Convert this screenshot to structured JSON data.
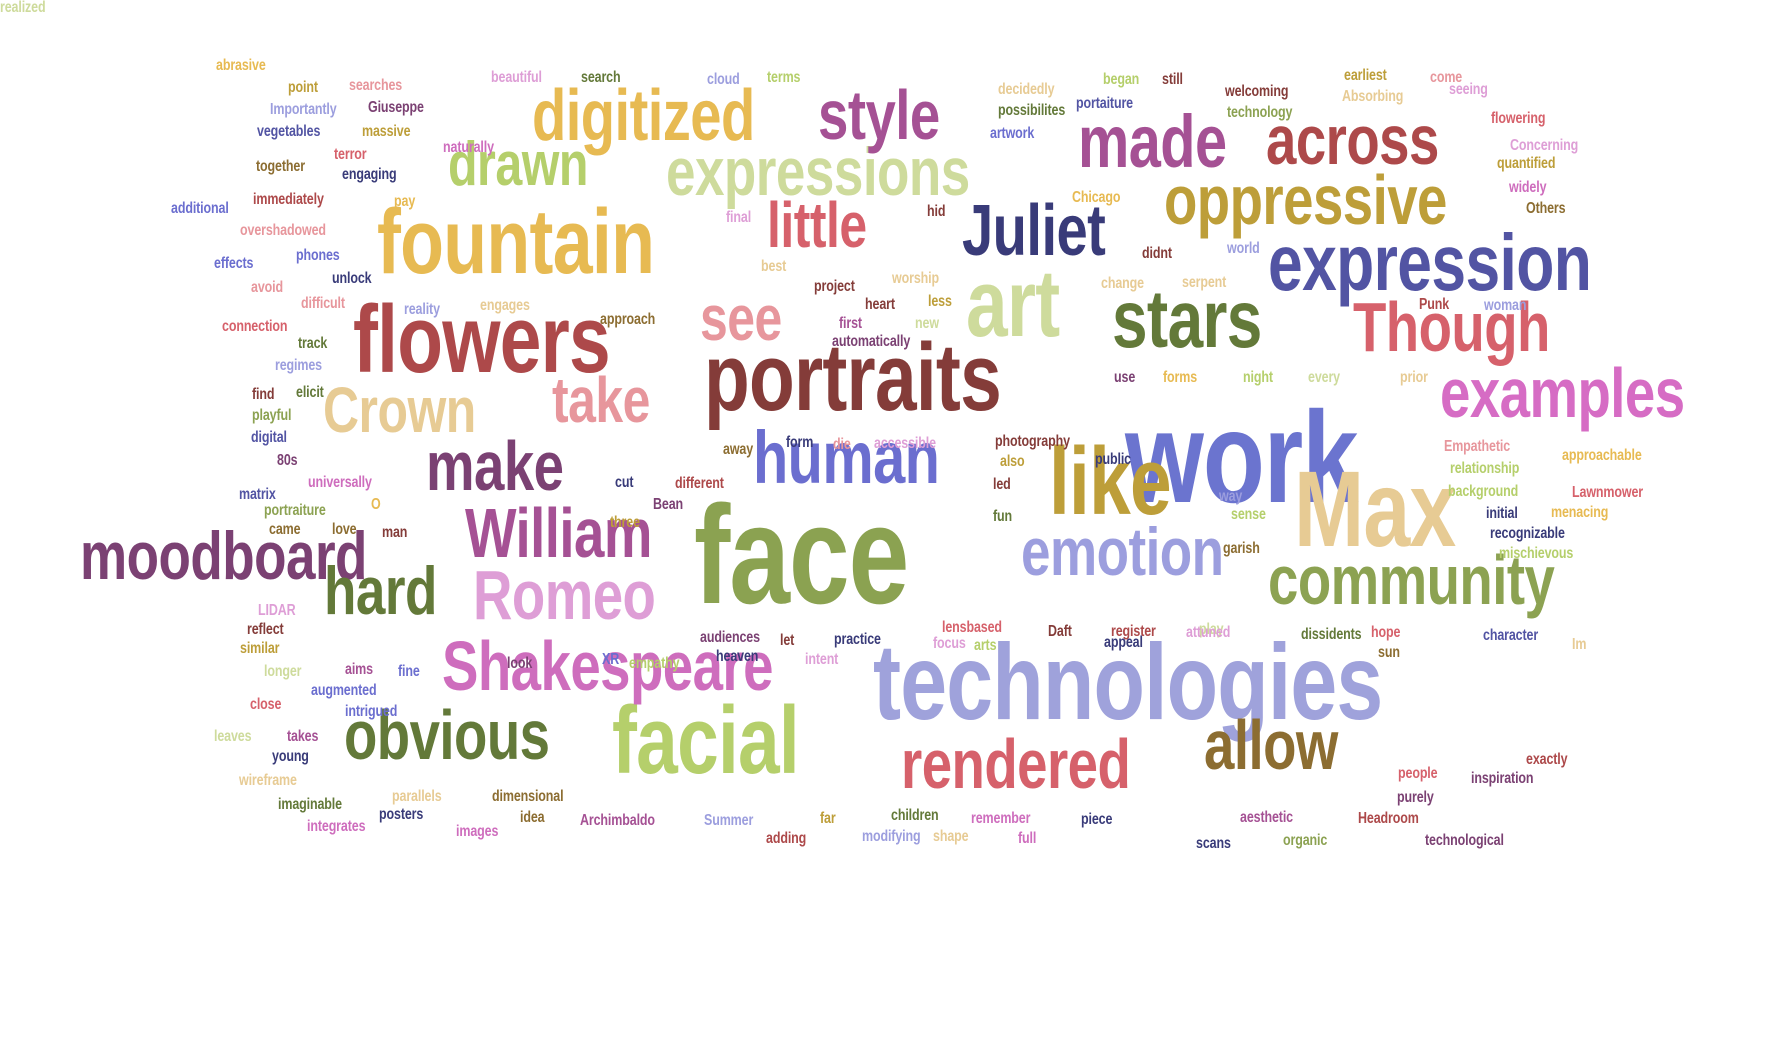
{
  "words": [
    {
      "text": "work",
      "color": "#6b74cf"
    },
    {
      "text": "face",
      "color": "#8ba251"
    },
    {
      "text": "technologies",
      "color": "#9fa2db"
    },
    {
      "text": "portraits",
      "color": "#843c39"
    },
    {
      "text": "flowers",
      "color": "#ad494a"
    },
    {
      "text": "fountain",
      "color": "#e7ba52"
    },
    {
      "text": "art",
      "color": "#cedb9c"
    },
    {
      "text": "stars",
      "color": "#637939"
    },
    {
      "text": "Max",
      "color": "#e7cb94"
    },
    {
      "text": "facial",
      "color": "#b5cf6b"
    },
    {
      "text": "like",
      "color": "#bd9e39"
    },
    {
      "text": "expression",
      "color": "#5254a3"
    },
    {
      "text": "digitized",
      "color": "#e7ba52"
    },
    {
      "text": "expressions",
      "color": "#cedb9c"
    },
    {
      "text": "examples",
      "color": "#d66cc4"
    },
    {
      "text": "moodboard",
      "color": "#7b4173"
    },
    {
      "text": "Shakespeare",
      "color": "#ce6dbd"
    },
    {
      "text": "community",
      "color": "#8ca252"
    },
    {
      "text": "oppressive",
      "color": "#bd9e39"
    },
    {
      "text": "rendered",
      "color": "#d6616b"
    },
    {
      "text": "William",
      "color": "#a55194"
    },
    {
      "text": "human",
      "color": "#6b6ecf"
    },
    {
      "text": "emotion",
      "color": "#9c9ede"
    },
    {
      "text": "obvious",
      "color": "#637939"
    },
    {
      "text": "Though",
      "color": "#d6616b"
    },
    {
      "text": "made",
      "color": "#a55194"
    },
    {
      "text": "across",
      "color": "#ad494a"
    },
    {
      "text": "Juliet",
      "color": "#393b79"
    },
    {
      "text": "style",
      "color": "#a55194"
    },
    {
      "text": "Romeo",
      "color": "#de9ed6"
    },
    {
      "text": "allow",
      "color": "#8c6d31"
    },
    {
      "text": "make",
      "color": "#7b4173"
    },
    {
      "text": "drawn",
      "color": "#b5cf6b"
    },
    {
      "text": "Crown",
      "color": "#e7cb94"
    },
    {
      "text": "take",
      "color": "#e7969c"
    },
    {
      "text": "see",
      "color": "#e7969c"
    },
    {
      "text": "little",
      "color": "#d6616b"
    },
    {
      "text": "hard",
      "color": "#637939"
    },
    {
      "text": "abrasive",
      "color": "#e7ba52"
    },
    {
      "text": "point",
      "color": "#bd9e39"
    },
    {
      "text": "searches",
      "color": "#e7969c"
    },
    {
      "text": "beautiful",
      "color": "#de9ed6"
    },
    {
      "text": "search",
      "color": "#637939"
    },
    {
      "text": "cloud",
      "color": "#9c9ede"
    },
    {
      "text": "terms",
      "color": "#b5cf6b"
    },
    {
      "text": "decidedly",
      "color": "#e7cb94"
    },
    {
      "text": "began",
      "color": "#b5cf6b"
    },
    {
      "text": "still",
      "color": "#843c39"
    },
    {
      "text": "welcoming",
      "color": "#843c39"
    },
    {
      "text": "earliest",
      "color": "#bd9e39"
    },
    {
      "text": "come",
      "color": "#e7969c"
    },
    {
      "text": "Importantly",
      "color": "#9c9ede"
    },
    {
      "text": "Giuseppe",
      "color": "#7b4173"
    },
    {
      "text": "possibilites",
      "color": "#637939"
    },
    {
      "text": "portaiture",
      "color": "#5254a3"
    },
    {
      "text": "technology",
      "color": "#8ca252"
    },
    {
      "text": "Absorbing",
      "color": "#e7cb94"
    },
    {
      "text": "seeing",
      "color": "#de9ed6"
    },
    {
      "text": "flowering",
      "color": "#d6616b"
    },
    {
      "text": "vegetables",
      "color": "#5254a3"
    },
    {
      "text": "massive",
      "color": "#bd9e39"
    },
    {
      "text": "artwork",
      "color": "#6b6ecf"
    },
    {
      "text": "naturally",
      "color": "#ce6dbd"
    },
    {
      "text": "Concerning",
      "color": "#de9ed6"
    },
    {
      "text": "terror",
      "color": "#d6616b"
    },
    {
      "text": "together",
      "color": "#8c6d31"
    },
    {
      "text": "engaging",
      "color": "#393b79"
    },
    {
      "text": "quantified",
      "color": "#bd9e39"
    },
    {
      "text": "widely",
      "color": "#ce6dbd"
    },
    {
      "text": "immediately",
      "color": "#ad494a"
    },
    {
      "text": "pay",
      "color": "#e7ba52"
    },
    {
      "text": "Chicago",
      "color": "#e7ba52"
    },
    {
      "text": "additional",
      "color": "#6b6ecf"
    },
    {
      "text": "overshadowed",
      "color": "#e7969c"
    },
    {
      "text": "final",
      "color": "#de9ed6"
    },
    {
      "text": "hid",
      "color": "#843c39"
    },
    {
      "text": "Others",
      "color": "#8c6d31"
    },
    {
      "text": "effects",
      "color": "#6b6ecf"
    },
    {
      "text": "phones",
      "color": "#6b6ecf"
    },
    {
      "text": "didnt",
      "color": "#843c39"
    },
    {
      "text": "world",
      "color": "#9c9ede"
    },
    {
      "text": "avoid",
      "color": "#e7969c"
    },
    {
      "text": "unlock",
      "color": "#393b79"
    },
    {
      "text": "best",
      "color": "#e7cb94"
    },
    {
      "text": "worship",
      "color": "#e7cb94"
    },
    {
      "text": "change",
      "color": "#e7cb94"
    },
    {
      "text": "serpent",
      "color": "#e7cb94"
    },
    {
      "text": "project",
      "color": "#843c39"
    },
    {
      "text": "difficult",
      "color": "#e7969c"
    },
    {
      "text": "reality",
      "color": "#9c9ede"
    },
    {
      "text": "engages",
      "color": "#e7cb94"
    },
    {
      "text": "heart",
      "color": "#843c39"
    },
    {
      "text": "less",
      "color": "#bd9e39"
    },
    {
      "text": "Punk",
      "color": "#ad494a"
    },
    {
      "text": "woman",
      "color": "#9c9ede"
    },
    {
      "text": "connection",
      "color": "#d6616b"
    },
    {
      "text": "approach",
      "color": "#8c6d31"
    },
    {
      "text": "first",
      "color": "#a55194"
    },
    {
      "text": "new",
      "color": "#cedb9c"
    },
    {
      "text": "track",
      "color": "#637939"
    },
    {
      "text": "automatically",
      "color": "#7b4173"
    },
    {
      "text": "regimes",
      "color": "#9c9ede"
    },
    {
      "text": "use",
      "color": "#7b4173"
    },
    {
      "text": "forms",
      "color": "#e7ba52"
    },
    {
      "text": "night",
      "color": "#b5cf6b"
    },
    {
      "text": "every",
      "color": "#cedb9c"
    },
    {
      "text": "prior",
      "color": "#e7cb94"
    },
    {
      "text": "find",
      "color": "#843c39"
    },
    {
      "text": "elicit",
      "color": "#637939"
    },
    {
      "text": "playful",
      "color": "#8ca252"
    },
    {
      "text": "digital",
      "color": "#5254a3"
    },
    {
      "text": "form",
      "color": "#393b79"
    },
    {
      "text": "die",
      "color": "#e7969c"
    },
    {
      "text": "accessible",
      "color": "#de9ed6"
    },
    {
      "text": "away",
      "color": "#8c6d31"
    },
    {
      "text": "photography",
      "color": "#843c39"
    },
    {
      "text": "public",
      "color": "#393b79"
    },
    {
      "text": "Empathetic",
      "color": "#e7969c"
    },
    {
      "text": "approachable",
      "color": "#e7ba52"
    },
    {
      "text": "80s",
      "color": "#7b4173"
    },
    {
      "text": "also",
      "color": "#bd9e39"
    },
    {
      "text": "relationship",
      "color": "#b5cf6b"
    },
    {
      "text": "universally",
      "color": "#ce6dbd"
    },
    {
      "text": "cut",
      "color": "#393b79"
    },
    {
      "text": "different",
      "color": "#ad494a"
    },
    {
      "text": "led",
      "color": "#843c39"
    },
    {
      "text": "background",
      "color": "#b5cf6b"
    },
    {
      "text": "Lawnmower",
      "color": "#d6616b"
    },
    {
      "text": "matrix",
      "color": "#5254a3"
    },
    {
      "text": "way",
      "color": "#9c9ede"
    },
    {
      "text": "portraiture",
      "color": "#8ca252"
    },
    {
      "text": "O",
      "color": "#e7ba52"
    },
    {
      "text": "Bean",
      "color": "#7b4173"
    },
    {
      "text": "fun",
      "color": "#637939"
    },
    {
      "text": "sense",
      "color": "#b5cf6b"
    },
    {
      "text": "initial",
      "color": "#393b79"
    },
    {
      "text": "menacing",
      "color": "#e7ba52"
    },
    {
      "text": "came",
      "color": "#8c6d31"
    },
    {
      "text": "love",
      "color": "#8c6d31"
    },
    {
      "text": "man",
      "color": "#843c39"
    },
    {
      "text": "three",
      "color": "#bd9e39"
    },
    {
      "text": "recognizable",
      "color": "#393b79"
    },
    {
      "text": "garish",
      "color": "#8c6d31"
    },
    {
      "text": "mischievous",
      "color": "#b5cf6b"
    },
    {
      "text": "LIDAR",
      "color": "#de9ed6"
    },
    {
      "text": "reflect",
      "color": "#843c39"
    },
    {
      "text": "lensbased",
      "color": "#d6616b"
    },
    {
      "text": "Daft",
      "color": "#843c39"
    },
    {
      "text": "register",
      "color": "#ad494a"
    },
    {
      "text": "play",
      "color": "#cedb9c"
    },
    {
      "text": "similar",
      "color": "#bd9e39"
    },
    {
      "text": "audiences",
      "color": "#7b4173"
    },
    {
      "text": "let",
      "color": "#843c39"
    },
    {
      "text": "practice",
      "color": "#393b79"
    },
    {
      "text": "focus",
      "color": "#de9ed6"
    },
    {
      "text": "arts",
      "color": "#b5cf6b"
    },
    {
      "text": "appeal",
      "color": "#393b79"
    },
    {
      "text": "attuned",
      "color": "#de9ed6"
    },
    {
      "text": "dissidents",
      "color": "#637939"
    },
    {
      "text": "hope",
      "color": "#d6616b"
    },
    {
      "text": "character",
      "color": "#5254a3"
    },
    {
      "text": "Im",
      "color": "#e7cb94"
    },
    {
      "text": "longer",
      "color": "#cedb9c"
    },
    {
      "text": "aims",
      "color": "#a55194"
    },
    {
      "text": "fine",
      "color": "#6b6ecf"
    },
    {
      "text": "look",
      "color": "#7b4173"
    },
    {
      "text": "XR",
      "color": "#6b6ecf"
    },
    {
      "text": "empathy",
      "color": "#b5cf6b"
    },
    {
      "text": "heaven",
      "color": "#393b79"
    },
    {
      "text": "intent",
      "color": "#de9ed6"
    },
    {
      "text": "sun",
      "color": "#8c6d31"
    },
    {
      "text": "augmented",
      "color": "#6b6ecf"
    },
    {
      "text": "close",
      "color": "#d6616b"
    },
    {
      "text": "intrigued",
      "color": "#6b6ecf"
    },
    {
      "text": "leaves",
      "color": "#cedb9c"
    },
    {
      "text": "takes",
      "color": "#a55194"
    },
    {
      "text": "young",
      "color": "#393b79"
    },
    {
      "text": "exactly",
      "color": "#ad494a"
    },
    {
      "text": "wireframe",
      "color": "#e7cb94"
    },
    {
      "text": "people",
      "color": "#d6616b"
    },
    {
      "text": "inspiration",
      "color": "#7b4173"
    },
    {
      "text": "purely",
      "color": "#7b4173"
    },
    {
      "text": "parallels",
      "color": "#e7cb94"
    },
    {
      "text": "dimensional",
      "color": "#8c6d31"
    },
    {
      "text": "imaginable",
      "color": "#637939"
    },
    {
      "text": "posters",
      "color": "#393b79"
    },
    {
      "text": "idea",
      "color": "#8c6d31"
    },
    {
      "text": "Archimbaldo",
      "color": "#a55194"
    },
    {
      "text": "Summer",
      "color": "#9c9ede"
    },
    {
      "text": "far",
      "color": "#bd9e39"
    },
    {
      "text": "children",
      "color": "#637939"
    },
    {
      "text": "remember",
      "color": "#ce6dbd"
    },
    {
      "text": "piece",
      "color": "#393b79"
    },
    {
      "text": "aesthetic",
      "color": "#a55194"
    },
    {
      "text": "Headroom",
      "color": "#ad494a"
    },
    {
      "text": "integrates",
      "color": "#ce6dbd"
    },
    {
      "text": "images",
      "color": "#ce6dbd"
    },
    {
      "text": "adding",
      "color": "#ad494a"
    },
    {
      "text": "modifying",
      "color": "#9c9ede"
    },
    {
      "text": "shape",
      "color": "#e7cb94"
    },
    {
      "text": "full",
      "color": "#ce6dbd"
    },
    {
      "text": "scans",
      "color": "#393b79"
    },
    {
      "text": "organic",
      "color": "#8ca252"
    },
    {
      "text": "technological",
      "color": "#7b4173"
    },
    {
      "text": "realized",
      "color": "#cedb9c"
    }
  ]
}
